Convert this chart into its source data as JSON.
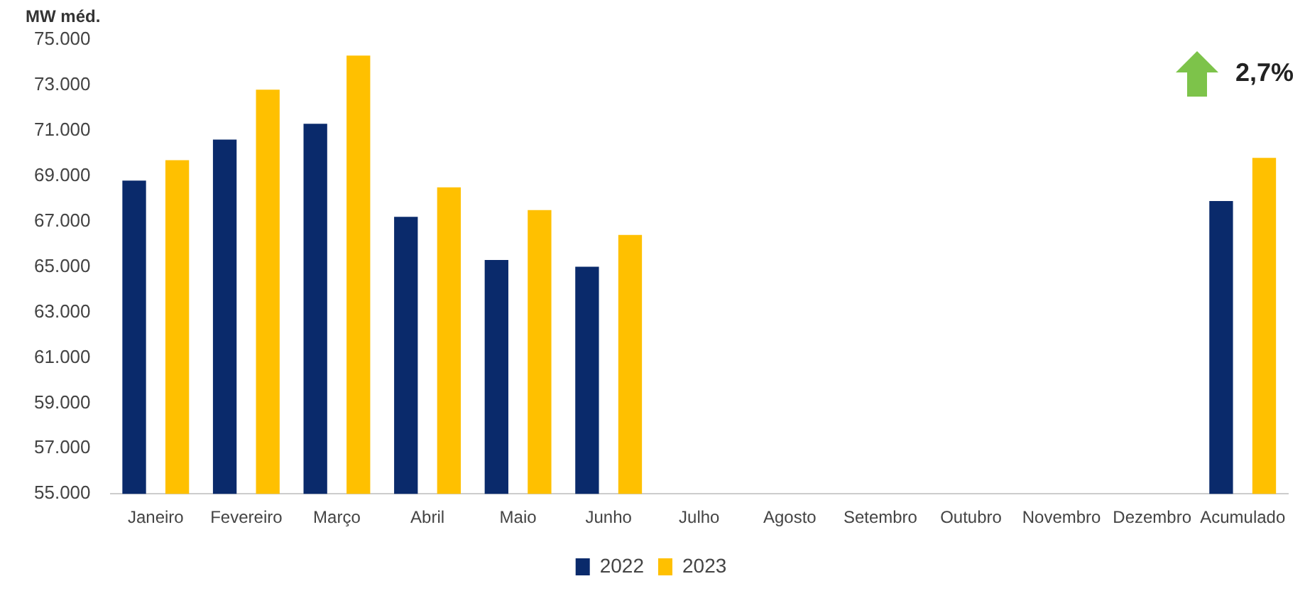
{
  "chart_data": {
    "type": "bar",
    "ylabel": "MW méd.",
    "categories": [
      "Janeiro",
      "Fevereiro",
      "Março",
      "Abril",
      "Maio",
      "Junho",
      "Julho",
      "Agosto",
      "Setembro",
      "Outubro",
      "Novembro",
      "Dezembro",
      "Acumulado"
    ],
    "series": [
      {
        "name": "2022",
        "color": "#0a2a6b",
        "values": [
          68800,
          70600,
          71300,
          67200,
          65300,
          65000,
          null,
          null,
          null,
          null,
          null,
          null,
          67900
        ]
      },
      {
        "name": "2023",
        "color": "#ffc000",
        "values": [
          69700,
          72800,
          74300,
          68500,
          67500,
          66400,
          null,
          null,
          null,
          null,
          null,
          null,
          69800
        ]
      }
    ],
    "ylim": [
      55000,
      75000
    ],
    "yticks": [
      {
        "value": 55000,
        "label": "55.000"
      },
      {
        "value": 57000,
        "label": "57.000"
      },
      {
        "value": 59000,
        "label": "59.000"
      },
      {
        "value": 61000,
        "label": "61.000"
      },
      {
        "value": 63000,
        "label": "63.000"
      },
      {
        "value": 65000,
        "label": "65.000"
      },
      {
        "value": 67000,
        "label": "67.000"
      },
      {
        "value": 69000,
        "label": "69.000"
      },
      {
        "value": 71000,
        "label": "71.000"
      },
      {
        "value": 73000,
        "label": "73.000"
      },
      {
        "value": 75000,
        "label": "75.000"
      }
    ],
    "annotations": [
      "2,7%"
    ],
    "grid": false,
    "legend": "bottom"
  }
}
